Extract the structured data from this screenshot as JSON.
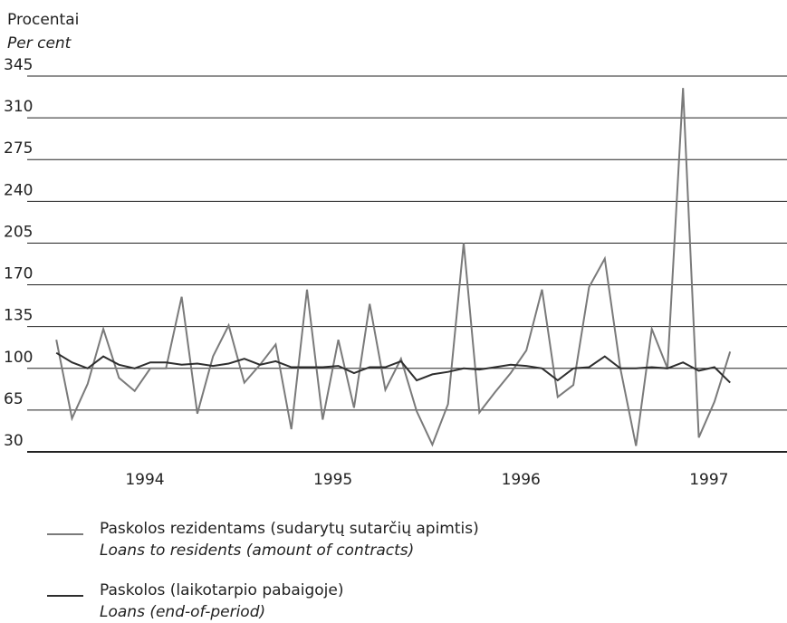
{
  "chart_data": {
    "type": "line",
    "y_label": "Procentai",
    "y_label_en": "Per cent",
    "x": [
      1994.0,
      1994.0833,
      1994.1667,
      1994.25,
      1994.3333,
      1994.4167,
      1994.5,
      1994.5833,
      1994.6667,
      1994.75,
      1994.8333,
      1994.9167,
      1995.0,
      1995.0833,
      1995.1667,
      1995.25,
      1995.3333,
      1995.4167,
      1995.5,
      1995.5833,
      1995.6667,
      1995.75,
      1995.8333,
      1995.9167,
      1996.0,
      1996.0833,
      1996.1667,
      1996.25,
      1996.3333,
      1996.4167,
      1996.5,
      1996.5833,
      1996.6667,
      1996.75,
      1996.8333,
      1996.9167,
      1997.0,
      1997.0833,
      1997.1667,
      1997.25,
      1997.3333,
      1997.4167,
      1997.5,
      1997.5833
    ],
    "xlim": [
      1993.845,
      1997.886
    ],
    "xticks": [
      {
        "value": 1994.5,
        "label": "1994"
      },
      {
        "value": 1995.5,
        "label": "1995"
      },
      {
        "value": 1996.5,
        "label": "1996"
      },
      {
        "value": 1997.5,
        "label": "1997"
      }
    ],
    "ylim": [
      30,
      345
    ],
    "yticks": [
      30,
      65,
      100,
      135,
      170,
      205,
      240,
      275,
      310,
      345
    ],
    "grid": true,
    "series": [
      {
        "name": "Paskolos rezidentams (sudarytų sutarčių apimtis)",
        "name_en": "Loans to residents (amount of contracts)",
        "color": "#7a7a7a",
        "values": [
          124,
          58,
          87,
          133,
          92,
          81,
          100,
          100,
          160,
          62,
          110,
          136,
          88,
          103,
          120,
          49,
          166,
          57,
          124,
          67,
          154,
          82,
          108,
          64,
          36,
          70,
          205,
          63,
          80,
          96,
          115,
          166,
          76,
          86,
          168,
          192,
          100,
          35,
          133,
          100,
          335,
          42,
          72,
          114
        ]
      },
      {
        "name": "Paskolos (laikotarpio pabaigoje)",
        "name_en": "Loans (end-of-period)",
        "color": "#2e2e2e",
        "values": [
          113,
          105,
          100,
          110,
          103,
          100,
          105,
          105,
          103,
          104,
          102,
          104,
          108,
          103,
          106,
          101,
          101,
          101,
          102,
          96,
          101,
          101,
          106,
          90,
          95,
          97,
          100,
          99,
          101,
          103,
          102,
          100,
          90,
          100,
          101,
          110,
          100,
          100,
          101,
          100,
          105,
          98,
          101,
          88
        ]
      }
    ]
  }
}
